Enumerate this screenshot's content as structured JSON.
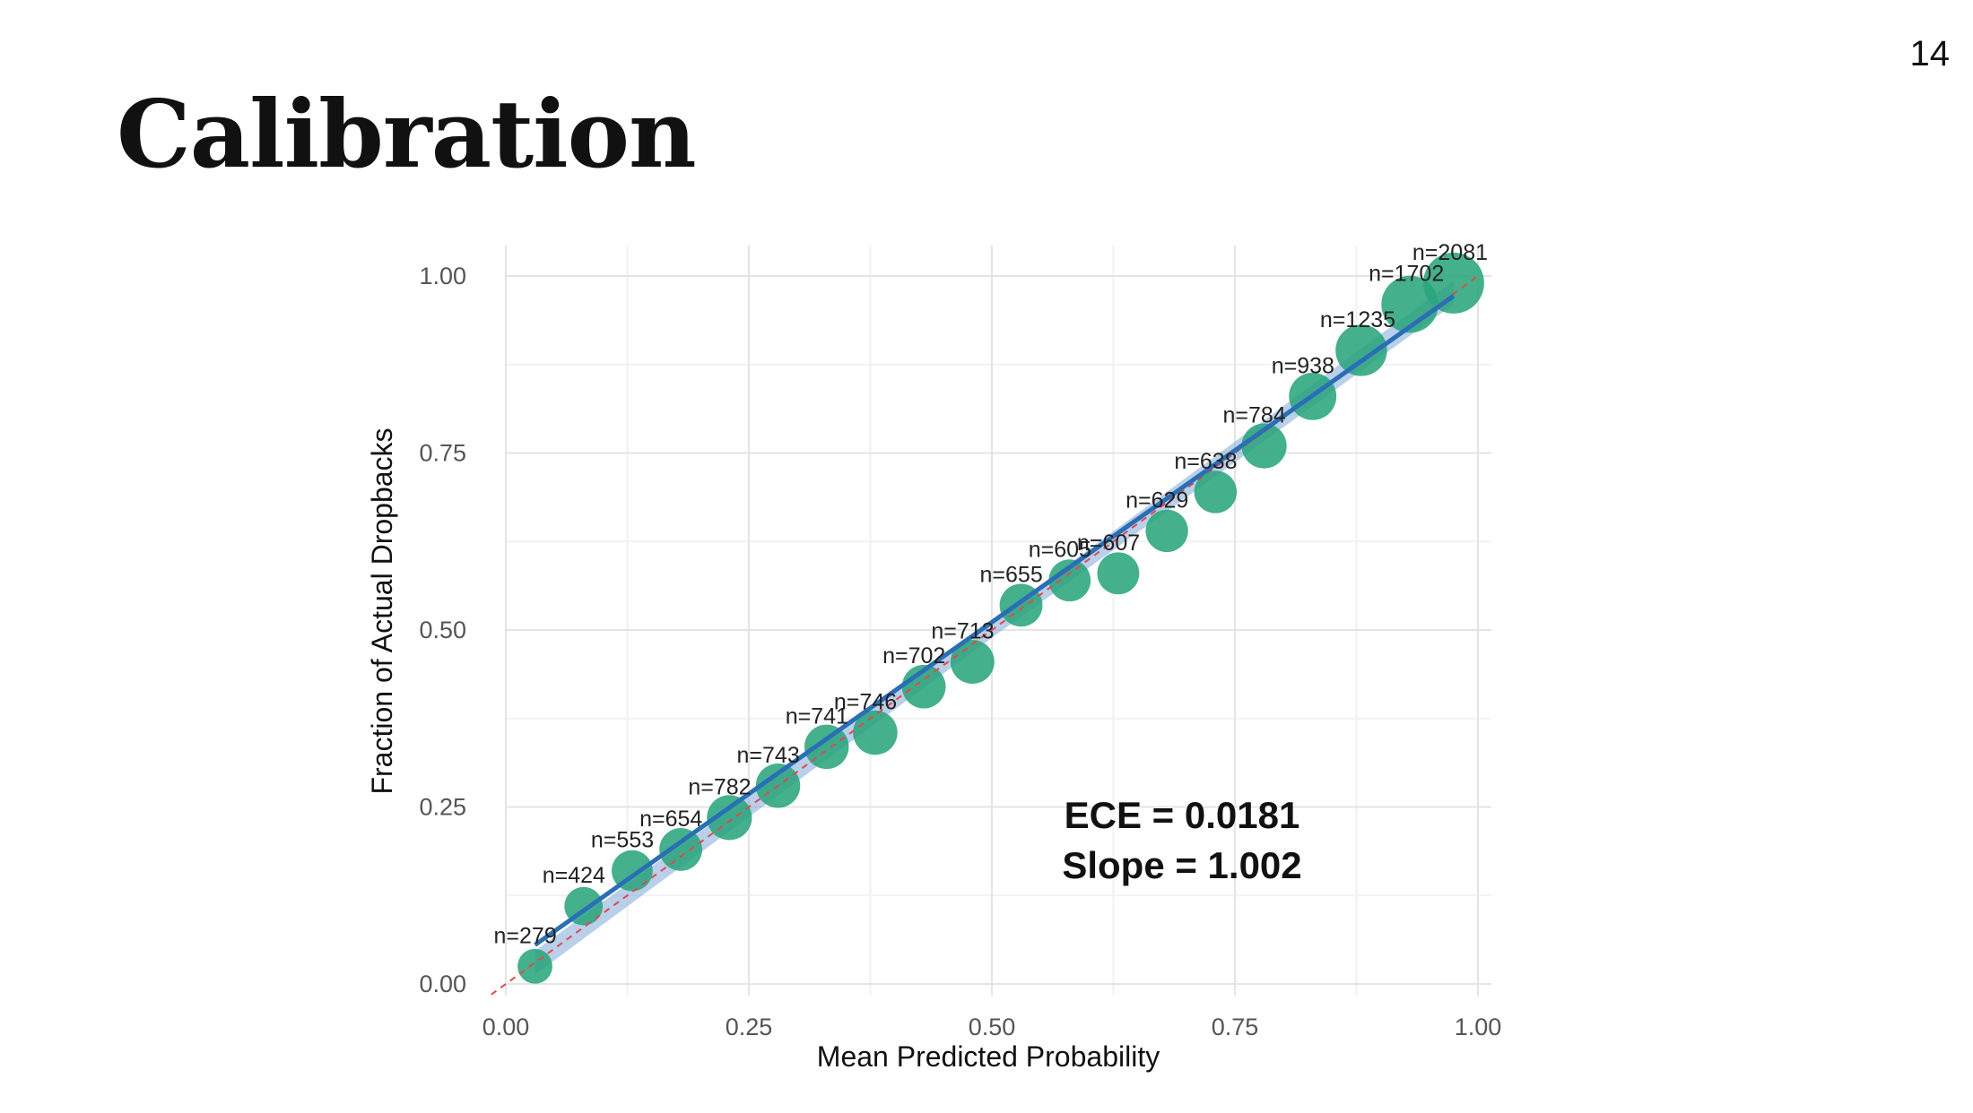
{
  "slide": {
    "title": "Calibration",
    "page_number": "14"
  },
  "chart_data": {
    "type": "scatter",
    "title": "",
    "xlabel": "Mean Predicted Probability",
    "ylabel": "Fraction of Actual Dropbacks",
    "xlim": [
      0,
      1
    ],
    "ylim": [
      0,
      1
    ],
    "x_ticks": [
      "0.00",
      "0.25",
      "0.50",
      "0.75",
      "1.00"
    ],
    "y_ticks": [
      "0.00",
      "0.25",
      "0.50",
      "0.75",
      "1.00"
    ],
    "grid": true,
    "reference_line": {
      "slope": 1,
      "intercept": 0,
      "style": "dashed",
      "color": "#e04a4a"
    },
    "fit_line": {
      "slope": 1.002,
      "color": "#2a6fb5",
      "band_color": "#7fa8d8"
    },
    "point_color": "#2aa57c",
    "annotations": [
      "ECE = 0.0181",
      "Slope = 1.002"
    ],
    "points": [
      {
        "x": 0.03,
        "y": 0.025,
        "label": "n=279",
        "n": 279
      },
      {
        "x": 0.08,
        "y": 0.11,
        "label": "n=424",
        "n": 424
      },
      {
        "x": 0.13,
        "y": 0.16,
        "label": "n=553",
        "n": 553
      },
      {
        "x": 0.18,
        "y": 0.19,
        "label": "n=654",
        "n": 654
      },
      {
        "x": 0.23,
        "y": 0.235,
        "label": "n=782",
        "n": 782
      },
      {
        "x": 0.28,
        "y": 0.28,
        "label": "n=743",
        "n": 743
      },
      {
        "x": 0.33,
        "y": 0.335,
        "label": "n=741",
        "n": 741
      },
      {
        "x": 0.38,
        "y": 0.355,
        "label": "n=746",
        "n": 746
      },
      {
        "x": 0.43,
        "y": 0.42,
        "label": "n=702",
        "n": 702
      },
      {
        "x": 0.48,
        "y": 0.455,
        "label": "n=713",
        "n": 713
      },
      {
        "x": 0.53,
        "y": 0.535,
        "label": "n=655",
        "n": 655
      },
      {
        "x": 0.58,
        "y": 0.57,
        "label": "n=605",
        "n": 605
      },
      {
        "x": 0.63,
        "y": 0.58,
        "label": "n=607",
        "n": 607
      },
      {
        "x": 0.68,
        "y": 0.64,
        "label": "n=629",
        "n": 629
      },
      {
        "x": 0.73,
        "y": 0.695,
        "label": "n=638",
        "n": 638
      },
      {
        "x": 0.78,
        "y": 0.76,
        "label": "n=784",
        "n": 784
      },
      {
        "x": 0.83,
        "y": 0.83,
        "label": "n=938",
        "n": 938
      },
      {
        "x": 0.88,
        "y": 0.895,
        "label": "n=1235",
        "n": 1235
      },
      {
        "x": 0.93,
        "y": 0.96,
        "label": "n=1702",
        "n": 1702
      },
      {
        "x": 0.975,
        "y": 0.99,
        "label": "n=2081",
        "n": 2081
      }
    ]
  }
}
